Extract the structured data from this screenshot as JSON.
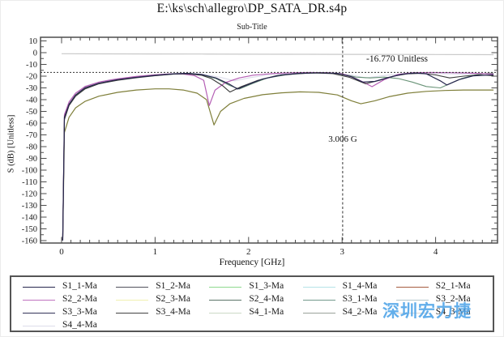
{
  "title": "E:\\ks\\sch\\allegro\\DP_SATA_DR.s4p",
  "subtitle": "Sub-Title",
  "watermark": "深圳宏力捷",
  "chart_data": {
    "type": "line",
    "title": "E:\\ks\\sch\\allegro\\DP_SATA_DR.s4p",
    "subtitle": "Sub-Title",
    "xlabel": "Frequency [GHz]",
    "ylabel": "S (dB) [Unitless]",
    "xlim": [
      -0.23,
      4.66
    ],
    "ylim": [
      -162,
      13
    ],
    "grid": false,
    "legend_position": "bottom",
    "x_axis": {
      "label_min": 0,
      "label_max": 4,
      "major_step": 1,
      "minor_step": 0.1,
      "tick_max": 4.6
    },
    "y_axis": {
      "label_min": -160,
      "label_max": 10,
      "major_step": 10,
      "minor_step": 5
    },
    "markers": {
      "hline": {
        "value": -16.77,
        "label": "-16.770 Unitless",
        "style": "dotted"
      },
      "vline": {
        "value": 3.006,
        "label": "3.006 G",
        "style": "dashed"
      }
    },
    "series": [
      {
        "name": "light-lavender-trace",
        "color": "#dcdcea",
        "width": 1.1,
        "points": [
          [
            0.012,
            -160
          ],
          [
            0.03,
            -52
          ],
          [
            0.1,
            -40
          ],
          [
            0.25,
            -28.5
          ],
          [
            0.5,
            -23.2
          ],
          [
            0.8,
            -20.2
          ],
          [
            1.1,
            -18.2
          ],
          [
            1.3,
            -17.5
          ],
          [
            1.5,
            -18.2
          ],
          [
            1.7,
            -21
          ],
          [
            1.85,
            -24
          ],
          [
            2.0,
            -21.5
          ],
          [
            2.2,
            -19
          ],
          [
            2.5,
            -17.4
          ],
          [
            2.8,
            -17
          ],
          [
            3.1,
            -19
          ],
          [
            3.25,
            -21.5
          ],
          [
            3.45,
            -19.5
          ],
          [
            3.7,
            -17.5
          ],
          [
            4.0,
            -17.8
          ],
          [
            4.3,
            -18.2
          ],
          [
            4.62,
            -18
          ]
        ]
      },
      {
        "name": "flat-through-trace",
        "color": "#c9c9c9",
        "width": 1.2,
        "points": [
          [
            0,
            -0.9
          ],
          [
            0.5,
            -1.0
          ],
          [
            1,
            -1.1
          ],
          [
            1.5,
            -1.2
          ],
          [
            2,
            -1.3
          ],
          [
            2.5,
            -1.35
          ],
          [
            3,
            -1.45
          ],
          [
            3.5,
            -1.5
          ],
          [
            4,
            -1.6
          ],
          [
            4.62,
            -1.7
          ]
        ]
      },
      {
        "name": "olive-trace",
        "color": "#7f7f3a",
        "width": 1.2,
        "points": [
          [
            0.012,
            -160
          ],
          [
            0.03,
            -68
          ],
          [
            0.08,
            -55
          ],
          [
            0.15,
            -47
          ],
          [
            0.25,
            -41.5
          ],
          [
            0.4,
            -37
          ],
          [
            0.6,
            -33.8
          ],
          [
            0.8,
            -31.8
          ],
          [
            1.0,
            -30.8
          ],
          [
            1.15,
            -30.8
          ],
          [
            1.3,
            -31.8
          ],
          [
            1.45,
            -34.5
          ],
          [
            1.55,
            -40
          ],
          [
            1.63,
            -61.5
          ],
          [
            1.7,
            -50
          ],
          [
            1.8,
            -43.5
          ],
          [
            1.95,
            -39
          ],
          [
            2.15,
            -35.8
          ],
          [
            2.35,
            -34.2
          ],
          [
            2.55,
            -33.4
          ],
          [
            2.75,
            -33.8
          ],
          [
            2.95,
            -36
          ],
          [
            3.1,
            -41
          ],
          [
            3.2,
            -43.5
          ],
          [
            3.35,
            -41
          ],
          [
            3.5,
            -37.5
          ],
          [
            3.7,
            -34.5
          ],
          [
            3.9,
            -33
          ],
          [
            4.1,
            -32.2
          ],
          [
            4.3,
            -31.8
          ],
          [
            4.62,
            -31.8
          ]
        ]
      },
      {
        "name": "green-trace",
        "color": "#6a9478",
        "width": 1.1,
        "points": [
          [
            0.012,
            -160
          ],
          [
            0.03,
            -56
          ],
          [
            0.08,
            -44.5
          ],
          [
            0.15,
            -36.5
          ],
          [
            0.25,
            -30.5
          ],
          [
            0.4,
            -26.2
          ],
          [
            0.6,
            -23.2
          ],
          [
            0.8,
            -21
          ],
          [
            1.0,
            -19.5
          ],
          [
            1.2,
            -18.2
          ],
          [
            1.35,
            -17.9
          ],
          [
            1.5,
            -19
          ],
          [
            1.65,
            -22
          ],
          [
            1.8,
            -28
          ],
          [
            1.9,
            -31
          ],
          [
            2.05,
            -26
          ],
          [
            2.2,
            -21.5
          ],
          [
            2.4,
            -18.8
          ],
          [
            2.6,
            -17.5
          ],
          [
            2.8,
            -17.2
          ],
          [
            3.0,
            -18.2
          ],
          [
            3.15,
            -20.8
          ],
          [
            3.3,
            -21.5
          ],
          [
            3.45,
            -20.8
          ],
          [
            3.6,
            -22
          ],
          [
            3.75,
            -25
          ],
          [
            3.9,
            -28.8
          ],
          [
            4.05,
            -30
          ],
          [
            4.15,
            -26.5
          ],
          [
            4.28,
            -22
          ],
          [
            4.42,
            -19
          ],
          [
            4.55,
            -17.6
          ],
          [
            4.62,
            -17.4
          ]
        ]
      },
      {
        "name": "magenta-trace",
        "color": "#b55fb5",
        "width": 1.2,
        "points": [
          [
            0.012,
            -160
          ],
          [
            0.03,
            -53
          ],
          [
            0.08,
            -42
          ],
          [
            0.15,
            -34.5
          ],
          [
            0.25,
            -29
          ],
          [
            0.4,
            -25
          ],
          [
            0.6,
            -22.3
          ],
          [
            0.8,
            -20.3
          ],
          [
            1.0,
            -18.8
          ],
          [
            1.15,
            -18.1
          ],
          [
            1.3,
            -18.2
          ],
          [
            1.42,
            -19.5
          ],
          [
            1.52,
            -23.5
          ],
          [
            1.58,
            -45
          ],
          [
            1.64,
            -32
          ],
          [
            1.75,
            -25.5
          ],
          [
            1.9,
            -21.5
          ],
          [
            2.05,
            -19.2
          ],
          [
            2.25,
            -17.8
          ],
          [
            2.45,
            -17.1
          ],
          [
            2.65,
            -16.9
          ],
          [
            2.85,
            -17
          ],
          [
            3.0,
            -18
          ],
          [
            3.12,
            -21
          ],
          [
            3.25,
            -26
          ],
          [
            3.32,
            -29
          ],
          [
            3.45,
            -23
          ],
          [
            3.6,
            -18.5
          ],
          [
            3.75,
            -17.2
          ],
          [
            3.95,
            -16.9
          ],
          [
            4.15,
            -17
          ],
          [
            4.35,
            -17.3
          ],
          [
            4.5,
            -17.8
          ],
          [
            4.62,
            -18.2
          ]
        ]
      },
      {
        "name": "dark-gray-trace",
        "color": "#3a3a3a",
        "width": 1.1,
        "points": [
          [
            0.012,
            -160
          ],
          [
            0.03,
            -57
          ],
          [
            0.08,
            -45
          ],
          [
            0.15,
            -37
          ],
          [
            0.25,
            -31
          ],
          [
            0.4,
            -26.5
          ],
          [
            0.6,
            -23.5
          ],
          [
            0.8,
            -21.3
          ],
          [
            1.0,
            -19.6
          ],
          [
            1.2,
            -18.3
          ],
          [
            1.35,
            -18
          ],
          [
            1.5,
            -19.3
          ],
          [
            1.6,
            -22
          ],
          [
            1.72,
            -28
          ],
          [
            1.8,
            -33.5
          ],
          [
            1.92,
            -29
          ],
          [
            2.1,
            -23.5
          ],
          [
            2.3,
            -19.6
          ],
          [
            2.5,
            -18
          ],
          [
            2.7,
            -17.3
          ],
          [
            2.9,
            -17.8
          ],
          [
            3.08,
            -21
          ],
          [
            3.25,
            -26.5
          ],
          [
            3.4,
            -23.5
          ],
          [
            3.55,
            -20
          ],
          [
            3.7,
            -18
          ],
          [
            3.85,
            -17.6
          ],
          [
            4.0,
            -19
          ],
          [
            4.15,
            -21.5
          ],
          [
            4.3,
            -20
          ],
          [
            4.45,
            -19
          ],
          [
            4.62,
            -19.5
          ]
        ]
      },
      {
        "name": "dark-navy-trace",
        "color": "#26264d",
        "width": 1.2,
        "points": [
          [
            0.012,
            -160
          ],
          [
            0.03,
            -55
          ],
          [
            0.08,
            -44
          ],
          [
            0.15,
            -36
          ],
          [
            0.25,
            -30
          ],
          [
            0.4,
            -26
          ],
          [
            0.6,
            -23
          ],
          [
            0.8,
            -21
          ],
          [
            1.0,
            -19.3
          ],
          [
            1.2,
            -18
          ],
          [
            1.35,
            -17.6
          ],
          [
            1.5,
            -18.6
          ],
          [
            1.65,
            -21.5
          ],
          [
            1.8,
            -27
          ],
          [
            1.88,
            -31
          ],
          [
            2.0,
            -27
          ],
          [
            2.15,
            -22.5
          ],
          [
            2.35,
            -19
          ],
          [
            2.55,
            -17.6
          ],
          [
            2.75,
            -17.1
          ],
          [
            2.95,
            -17.6
          ],
          [
            3.1,
            -20.5
          ],
          [
            3.22,
            -25
          ],
          [
            3.35,
            -24.5
          ],
          [
            3.5,
            -21
          ],
          [
            3.65,
            -18.3
          ],
          [
            3.78,
            -17.3
          ],
          [
            3.9,
            -18
          ],
          [
            4.05,
            -24
          ],
          [
            4.12,
            -27.5
          ],
          [
            4.25,
            -23
          ],
          [
            4.4,
            -19.8
          ],
          [
            4.62,
            -18.8
          ]
        ]
      }
    ]
  },
  "legend": {
    "entries": [
      {
        "label": "S1_1-Ma",
        "color": "#26264d"
      },
      {
        "label": "S1_2-Ma",
        "color": "#50505c"
      },
      {
        "label": "S1_3-Ma",
        "color": "#8ed98e"
      },
      {
        "label": "S1_4-Ma",
        "color": "#b5e2e8"
      },
      {
        "label": "S2_1-Ma",
        "color": "#a65c40"
      },
      {
        "label": "S2_2-Ma",
        "color": "#bf73bf"
      },
      {
        "label": "S2_3-Ma",
        "color": "#f0f0b0"
      },
      {
        "label": "S2_4-Ma",
        "color": "#5c7568"
      },
      {
        "label": "S3_1-Ma",
        "color": "#739a8c"
      },
      {
        "label": "S3_2-Ma",
        "color": "#b3c6cc"
      },
      {
        "label": "S3_3-Ma",
        "color": "#333359"
      },
      {
        "label": "S3_4-Ma",
        "color": "#424242"
      },
      {
        "label": "S4_1-Ma",
        "color": "#ccd9c6"
      },
      {
        "label": "S4_2-Ma",
        "color": "#9aa29a"
      },
      {
        "label": "S4_3-Ma",
        "color": "#d9d9d9"
      },
      {
        "label": "S4_4-Ma",
        "color": "#dcdcea"
      }
    ]
  }
}
